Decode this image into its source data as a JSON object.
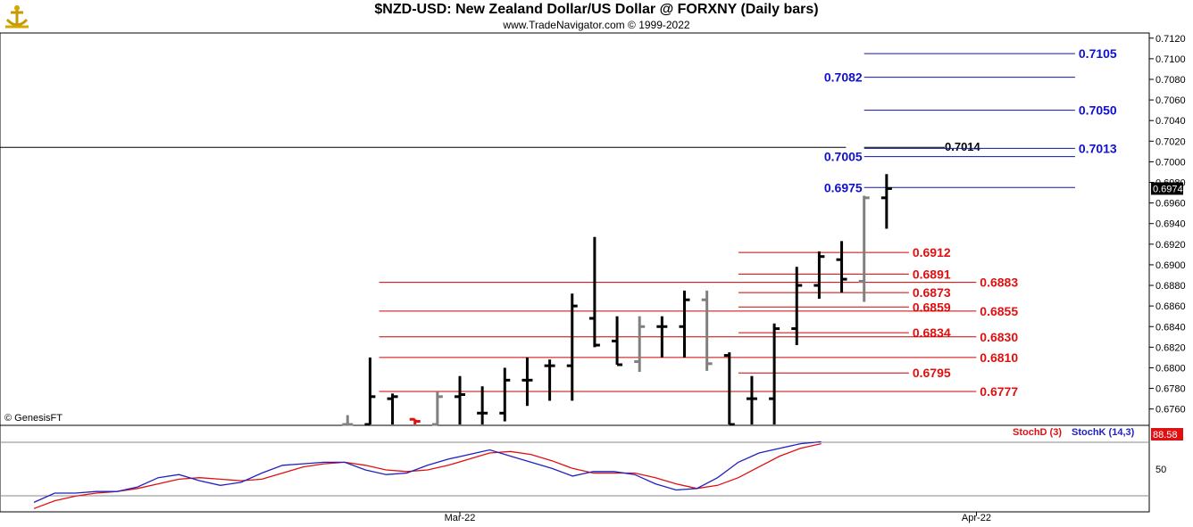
{
  "header": {
    "title": "$NZD-USD:  New Zealand Dollar/US Dollar @ FORXNY  (Daily bars)",
    "subtitle": "www.TradeNavigator.com © 1999-2022"
  },
  "copyright": "© GenesisFT",
  "indicator": {
    "stochd_label": "StochD (3)",
    "stochk_label": "StochK (14,3)",
    "last_value": "88.58",
    "axis_label": "50",
    "stochk_color": "#2020c0",
    "stochd_color": "#e01010"
  },
  "chart_data": {
    "type": "ohlc",
    "ylim": [
      0.6745,
      0.7125
    ],
    "yticks": [
      "0.7120",
      "0.7100",
      "0.7080",
      "0.7060",
      "0.7040",
      "0.7020",
      "0.7000",
      "0.6980",
      "0.6960",
      "0.6940",
      "0.6920",
      "0.6900",
      "0.6880",
      "0.6860",
      "0.6840",
      "0.6820",
      "0.6800",
      "0.6780",
      "0.6760"
    ],
    "xlabels": [
      {
        "date": "2022-03-01",
        "label": "Mar-22"
      },
      {
        "date": "2022-04-01",
        "label": "Apr-22"
      }
    ],
    "last_price": "0.6974",
    "horizontal_line": 0.7014,
    "bars": [
      {
        "date": "2022-02-22",
        "high": 0.6754,
        "low": 0.6745,
        "open": 0.6745,
        "close": 0.6745,
        "color": "#808080"
      },
      {
        "date": "2022-02-23",
        "high": 0.681,
        "low": 0.6745,
        "open": 0.6745,
        "close": 0.6772,
        "color": "#000000"
      },
      {
        "date": "2022-02-24",
        "high": 0.6775,
        "low": 0.6745,
        "open": 0.677,
        "close": 0.6772,
        "color": "#000000"
      },
      {
        "date": "2022-02-25",
        "high": 0.675,
        "low": 0.6745,
        "open": 0.675,
        "close": 0.6748,
        "color": "#e01010"
      },
      {
        "date": "2022-02-28",
        "high": 0.6777,
        "low": 0.6745,
        "open": 0.6745,
        "close": 0.6772,
        "color": "#808080"
      },
      {
        "date": "2022-03-01",
        "high": 0.6792,
        "low": 0.6745,
        "open": 0.6772,
        "close": 0.6774,
        "color": "#000000"
      },
      {
        "date": "2022-03-02",
        "high": 0.6782,
        "low": 0.6745,
        "open": 0.6756,
        "close": 0.6756,
        "color": "#000000"
      },
      {
        "date": "2022-03-03",
        "high": 0.68,
        "low": 0.6748,
        "open": 0.6756,
        "close": 0.6788,
        "color": "#000000"
      },
      {
        "date": "2022-03-04",
        "high": 0.681,
        "low": 0.6763,
        "open": 0.6788,
        "close": 0.6788,
        "color": "#000000"
      },
      {
        "date": "2022-03-07",
        "high": 0.6808,
        "low": 0.6768,
        "open": 0.6802,
        "close": 0.6802,
        "color": "#000000"
      },
      {
        "date": "2022-03-08",
        "high": 0.6872,
        "low": 0.6768,
        "open": 0.6802,
        "close": 0.686,
        "color": "#000000"
      },
      {
        "date": "2022-03-09",
        "high": 0.6927,
        "low": 0.682,
        "open": 0.6848,
        "close": 0.6822,
        "color": "#000000"
      },
      {
        "date": "2022-03-10",
        "high": 0.685,
        "low": 0.6803,
        "open": 0.6826,
        "close": 0.6803,
        "color": "#000000"
      },
      {
        "date": "2022-03-11",
        "high": 0.685,
        "low": 0.6796,
        "open": 0.6806,
        "close": 0.684,
        "color": "#808080"
      },
      {
        "date": "2022-03-14",
        "high": 0.685,
        "low": 0.681,
        "open": 0.684,
        "close": 0.684,
        "color": "#000000"
      },
      {
        "date": "2022-03-15",
        "high": 0.6875,
        "low": 0.681,
        "open": 0.684,
        "close": 0.6866,
        "color": "#000000"
      },
      {
        "date": "2022-03-16",
        "high": 0.6875,
        "low": 0.6797,
        "open": 0.6866,
        "close": 0.6804,
        "color": "#808080"
      },
      {
        "date": "2022-03-17",
        "high": 0.6815,
        "low": 0.6745,
        "open": 0.6812,
        "close": 0.6745,
        "color": "#000000"
      },
      {
        "date": "2022-03-18",
        "high": 0.6792,
        "low": 0.6745,
        "open": 0.677,
        "close": 0.677,
        "color": "#000000"
      },
      {
        "date": "2022-03-21",
        "high": 0.6843,
        "low": 0.6745,
        "open": 0.677,
        "close": 0.6838,
        "color": "#000000"
      },
      {
        "date": "2022-03-22",
        "high": 0.6898,
        "low": 0.6822,
        "open": 0.6838,
        "close": 0.688,
        "color": "#000000"
      },
      {
        "date": "2022-03-23",
        "high": 0.6913,
        "low": 0.6867,
        "open": 0.688,
        "close": 0.6908,
        "color": "#000000"
      },
      {
        "date": "2022-03-24",
        "high": 0.6923,
        "low": 0.6873,
        "open": 0.6905,
        "close": 0.6886,
        "color": "#000000"
      },
      {
        "date": "2022-03-25",
        "high": 0.6967,
        "low": 0.6864,
        "open": 0.6884,
        "close": 0.6965,
        "color": "#808080"
      },
      {
        "date": "2022-03-28",
        "high": 0.6988,
        "low": 0.6935,
        "open": 0.6965,
        "close": 0.6974,
        "color": "#000000"
      }
    ],
    "levels_blue": [
      {
        "value": 0.7105,
        "label": "0.7105",
        "from": "2022-03-25",
        "to": "2022-04-06",
        "side": "right"
      },
      {
        "value": 0.7082,
        "label": "0.7082",
        "from": "2022-03-25",
        "to": "2022-04-06",
        "side": "left"
      },
      {
        "value": 0.705,
        "label": "0.7050",
        "from": "2022-03-25",
        "to": "2022-04-06",
        "side": "right"
      },
      {
        "value": 0.7013,
        "label": "0.7013",
        "from": "2022-03-25",
        "to": "2022-04-06",
        "side": "right"
      },
      {
        "value": 0.7005,
        "label": "0.7005",
        "from": "2022-03-25",
        "to": "2022-04-06",
        "side": "left"
      },
      {
        "value": 0.6975,
        "label": "0.6975",
        "from": "2022-03-25",
        "to": "2022-04-06",
        "side": "left"
      }
    ],
    "levels_red": [
      {
        "value": 0.6912,
        "label": "0.6912",
        "from": "2022-03-18",
        "to": "2022-03-28"
      },
      {
        "value": 0.6891,
        "label": "0.6891",
        "from": "2022-03-18",
        "to": "2022-03-28"
      },
      {
        "value": 0.6883,
        "label": "0.6883",
        "from": "2022-02-24",
        "to": "2022-03-31"
      },
      {
        "value": 0.6873,
        "label": "0.6873",
        "from": "2022-03-18",
        "to": "2022-03-28"
      },
      {
        "value": 0.6859,
        "label": "0.6859",
        "from": "2022-03-18",
        "to": "2022-03-28"
      },
      {
        "value": 0.6855,
        "label": "0.6855",
        "from": "2022-02-24",
        "to": "2022-03-31"
      },
      {
        "value": 0.6834,
        "label": "0.6834",
        "from": "2022-03-18",
        "to": "2022-03-28"
      },
      {
        "value": 0.683,
        "label": "0.6830",
        "from": "2022-02-24",
        "to": "2022-03-31"
      },
      {
        "value": 0.681,
        "label": "0.6810",
        "from": "2022-02-24",
        "to": "2022-03-31"
      },
      {
        "value": 0.6795,
        "label": "0.6795",
        "from": "2022-03-18",
        "to": "2022-03-28"
      },
      {
        "value": 0.6777,
        "label": "0.6777",
        "from": "2022-02-24",
        "to": "2022-03-31"
      }
    ],
    "level_0_7014": {
      "value": 0.7014,
      "label": "0.7014"
    },
    "stoch": {
      "ylim": [
        0,
        100
      ],
      "stochK": [
        10,
        22,
        22,
        24,
        24,
        30,
        42,
        46,
        38,
        32,
        36,
        48,
        58,
        60,
        62,
        62,
        52,
        46,
        48,
        58,
        66,
        72,
        78,
        70,
        62,
        54,
        44,
        50,
        50,
        46,
        34,
        26,
        28,
        42,
        62,
        74,
        80,
        86,
        88.6
      ],
      "stochD": [
        2,
        12,
        18,
        22,
        24,
        28,
        34,
        40,
        42,
        40,
        38,
        40,
        48,
        56,
        60,
        62,
        58,
        52,
        50,
        52,
        58,
        66,
        74,
        76,
        72,
        64,
        54,
        48,
        48,
        48,
        42,
        34,
        28,
        32,
        42,
        56,
        70,
        80,
        86
      ]
    }
  }
}
